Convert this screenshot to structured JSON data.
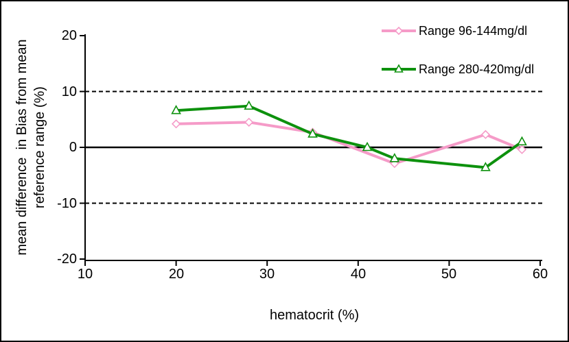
{
  "chart_data": {
    "type": "line",
    "title": "",
    "xlabel": "hematocrit (%)",
    "ylabel_lines": [
      "mean difference  in Bias from mean",
      "reference range (%)"
    ],
    "xlim": [
      10,
      60
    ],
    "ylim": [
      -20,
      20
    ],
    "xticks": [
      10,
      20,
      30,
      40,
      50,
      60
    ],
    "yticks": [
      20,
      10,
      0,
      -10,
      -20
    ],
    "xtick_labels": [
      "10",
      "20",
      "30",
      "40",
      "50",
      "60"
    ],
    "ytick_labels": [
      "20",
      "10",
      "0",
      "-10",
      "-20"
    ],
    "grid": false,
    "legend_position": "top-right",
    "axis_color": "#000000",
    "reference_lines": [
      {
        "y": 10,
        "style": "dashed"
      },
      {
        "y": 0,
        "style": "solid"
      },
      {
        "y": -10,
        "style": "dashed"
      }
    ],
    "series": [
      {
        "name": "Range 96-144mg/dl",
        "color": "#f59bc8",
        "marker": "diamond",
        "x": [
          20,
          28,
          35,
          44,
          54,
          58
        ],
        "y": [
          4.2,
          4.5,
          2.7,
          -2.9,
          2.3,
          -0.4
        ]
      },
      {
        "name": "Range 280-420mg/dl",
        "color": "#0d910d",
        "marker": "triangle",
        "x": [
          20,
          28,
          35,
          41,
          44,
          54,
          58
        ],
        "y": [
          6.6,
          7.4,
          2.4,
          0,
          -2.0,
          -3.6,
          1.0
        ]
      }
    ]
  }
}
